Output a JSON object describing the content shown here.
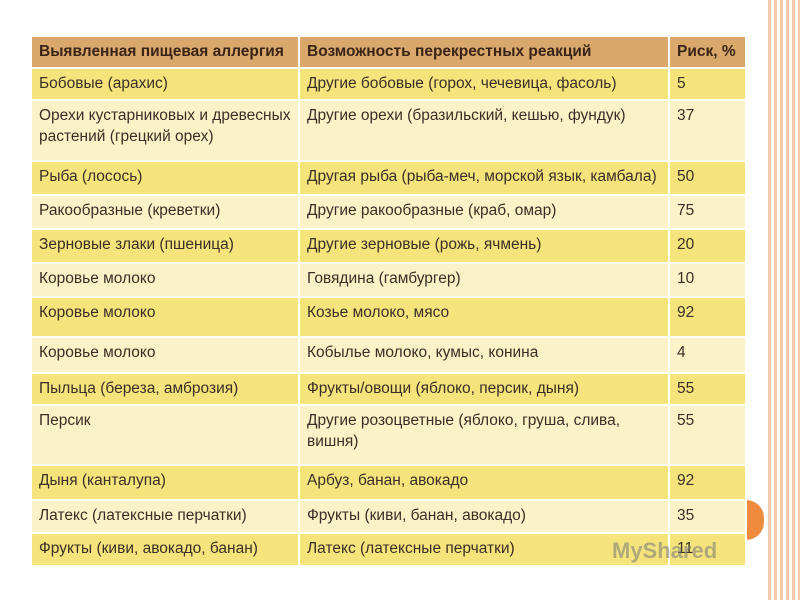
{
  "table": {
    "header": [
      "Выявленная пищевая аллергия",
      "Возможность перекрестных реакций",
      "Риск, %"
    ],
    "rows": [
      [
        "Бобовые (арахис)",
        "Другие бобовые (горох, чечевица, фасоль)",
        5
      ],
      [
        "Орехи кустарниковых и древесных растений (грецкий орех)",
        "Другие орехи (бразильский, кешью, фундук)",
        37
      ],
      [
        "Рыба (лосось)",
        "Другая рыба (рыба-меч, морской язык, камбала)",
        50
      ],
      [
        "Ракообразные (креветки)",
        "Другие ракообразные (краб, омар)",
        75
      ],
      [
        "Зерновые злаки (пшеница)",
        "Другие зерновые (рожь, ячмень)",
        20
      ],
      [
        "Коровье молоко",
        "Говядина (гамбургер)",
        10
      ],
      [
        "Коровье молоко",
        "Козье молоко, мясо",
        92
      ],
      [
        "Коровье молоко",
        "Кобылье молоко, кумыс, конина",
        4
      ],
      [
        "Пыльца (береза, амброзия)",
        "Фрукты/овощи (яблоко, персик, дыня)",
        55
      ],
      [
        "Персик",
        "Другие розоцветные (яблоко, груша, слива, вишня)",
        55
      ],
      [
        "Дыня (канталупа)",
        "Арбуз, банан, авокадо",
        92
      ],
      [
        "Латекс (латексные перчатки)",
        "Фрукты (киви, банан, авокадо)",
        35
      ],
      [
        "Фрукты (киви, авокадо, банан)",
        "Латекс (латексные перчатки)",
        11
      ]
    ]
  },
  "watermark": "MyShared"
}
